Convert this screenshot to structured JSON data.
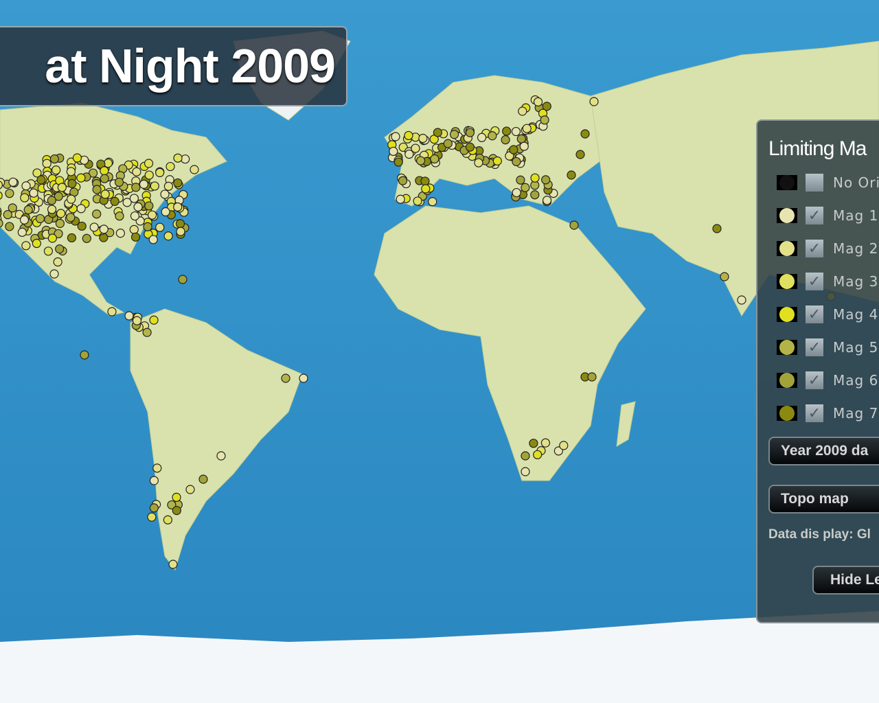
{
  "title": "at Night 2009",
  "legend": {
    "heading": "Limiting Ma",
    "items": [
      {
        "label": "No Ori",
        "color": "#111111",
        "checked": false
      },
      {
        "label": "Mag 1",
        "color": "#e6e4b0",
        "checked": true
      },
      {
        "label": "Mag 2",
        "color": "#e3e08a",
        "checked": true
      },
      {
        "label": "Mag 3",
        "color": "#dfe060",
        "checked": true
      },
      {
        "label": "Mag 4",
        "color": "#e0e020",
        "checked": true
      },
      {
        "label": "Mag 5",
        "color": "#b3b448",
        "checked": true
      },
      {
        "label": "Mag 6",
        "color": "#a3a33a",
        "checked": true
      },
      {
        "label": "Mag 7",
        "color": "#8a8a10",
        "checked": true
      }
    ],
    "year_button": "Year 2009 da",
    "map_button": "Topo map",
    "data_display": "Data dis play: Gl",
    "hide_button": "Hide Le"
  },
  "colors": {
    "ocean": "#2f8fc4",
    "land": "#dfe6b0",
    "ice": "#f4f7f9"
  }
}
